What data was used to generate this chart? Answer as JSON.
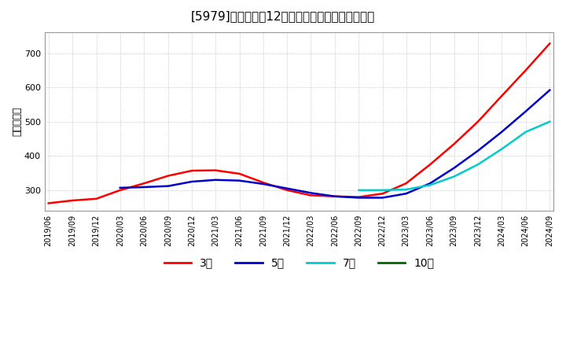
{
  "title": "[5979]　経常利益12か月移動合計の平均値の推移",
  "ylabel": "（百万円）",
  "background_color": "#ffffff",
  "plot_bg_color": "#ffffff",
  "grid_color": "#aaaaaa",
  "ylim": [
    240,
    760
  ],
  "yticks": [
    300,
    400,
    500,
    600,
    700
  ],
  "series": {
    "3年": {
      "color": "#ff0000",
      "dates": [
        "2019/06",
        "2019/09",
        "2019/12",
        "2020/03",
        "2020/06",
        "2020/09",
        "2020/12",
        "2021/03",
        "2021/06",
        "2021/09",
        "2021/12",
        "2022/03",
        "2022/06",
        "2022/09",
        "2022/12",
        "2023/03",
        "2023/06",
        "2023/09",
        "2023/12",
        "2024/03",
        "2024/06",
        "2024/09"
      ],
      "values": [
        262,
        270,
        275,
        300,
        320,
        342,
        357,
        358,
        348,
        322,
        300,
        285,
        282,
        280,
        290,
        320,
        375,
        435,
        500,
        575,
        650,
        728
      ]
    },
    "5年": {
      "color": "#0000cc",
      "dates": [
        "2019/06",
        "2019/09",
        "2019/12",
        "2020/03",
        "2020/06",
        "2020/09",
        "2020/12",
        "2021/03",
        "2021/06",
        "2021/09",
        "2021/12",
        "2022/03",
        "2022/06",
        "2022/09",
        "2022/12",
        "2023/03",
        "2023/06",
        "2023/09",
        "2023/12",
        "2024/03",
        "2024/06",
        "2024/09"
      ],
      "values": [
        null,
        null,
        null,
        307,
        309,
        312,
        325,
        330,
        328,
        318,
        305,
        292,
        282,
        278,
        278,
        290,
        320,
        365,
        415,
        470,
        530,
        592
      ]
    },
    "7年": {
      "color": "#00cccc",
      "dates": [
        "2019/06",
        "2019/09",
        "2019/12",
        "2020/03",
        "2020/06",
        "2020/09",
        "2020/12",
        "2021/03",
        "2021/06",
        "2021/09",
        "2021/12",
        "2022/03",
        "2022/06",
        "2022/09",
        "2022/12",
        "2023/03",
        "2023/06",
        "2023/09",
        "2023/12",
        "2024/03",
        "2024/06",
        "2024/09"
      ],
      "values": [
        null,
        null,
        null,
        null,
        null,
        null,
        null,
        null,
        null,
        null,
        null,
        null,
        null,
        300,
        300,
        302,
        315,
        340,
        375,
        420,
        470,
        500
      ]
    },
    "10年": {
      "color": "#006600",
      "dates": [
        "2019/06",
        "2019/09",
        "2019/12",
        "2020/03",
        "2020/06",
        "2020/09",
        "2020/12",
        "2021/03",
        "2021/06",
        "2021/09",
        "2021/12",
        "2022/03",
        "2022/06",
        "2022/09",
        "2022/12",
        "2023/03",
        "2023/06",
        "2023/09",
        "2023/12",
        "2024/03",
        "2024/06",
        "2024/09"
      ],
      "values": [
        null,
        null,
        null,
        null,
        null,
        null,
        null,
        null,
        null,
        null,
        null,
        null,
        null,
        null,
        null,
        null,
        null,
        null,
        null,
        null,
        null,
        null
      ]
    }
  },
  "xtick_labels": [
    "2019/06",
    "2019/09",
    "2019/12",
    "2020/03",
    "2020/06",
    "2020/09",
    "2020/12",
    "2021/03",
    "2021/06",
    "2021/09",
    "2021/12",
    "2022/03",
    "2022/06",
    "2022/09",
    "2022/12",
    "2023/03",
    "2023/06",
    "2023/09",
    "2023/12",
    "2024/03",
    "2024/06",
    "2024/09"
  ],
  "legend_labels": [
    "3年",
    "5年",
    "7年",
    "10年"
  ],
  "legend_colors": [
    "#ff0000",
    "#0000cc",
    "#00cccc",
    "#006600"
  ]
}
